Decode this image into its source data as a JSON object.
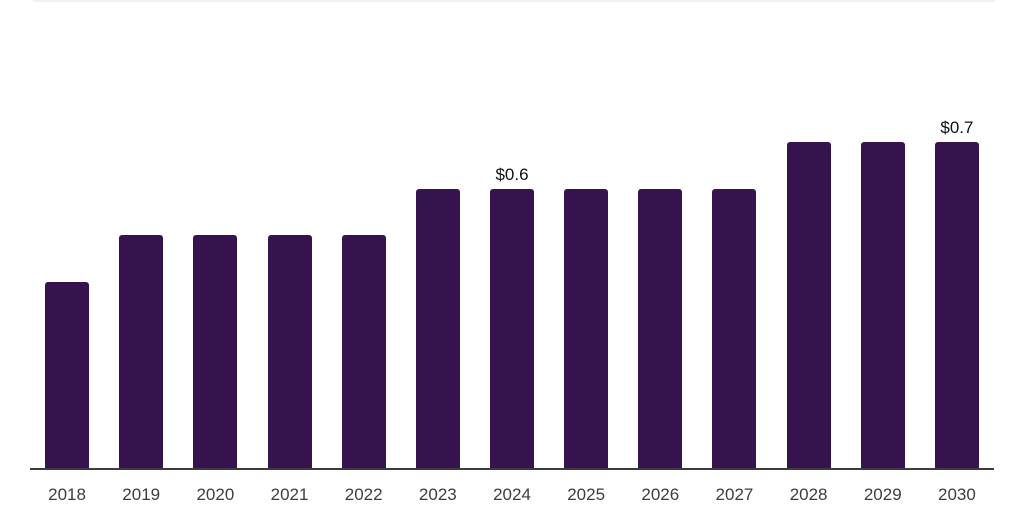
{
  "chart_data": {
    "type": "bar",
    "title": "",
    "xlabel": "",
    "ylabel": "",
    "categories": [
      "2018",
      "2019",
      "2020",
      "2021",
      "2022",
      "2023",
      "2024",
      "2025",
      "2026",
      "2027",
      "2028",
      "2029",
      "2030"
    ],
    "values": [
      0.4,
      0.5,
      0.5,
      0.5,
      0.5,
      0.6,
      0.6,
      0.6,
      0.6,
      0.6,
      0.7,
      0.7,
      0.7
    ],
    "data_labels": [
      "",
      "",
      "",
      "",
      "",
      "",
      "$0.6",
      "",
      "",
      "",
      "",
      "",
      "$0.7"
    ],
    "ylim": [
      0,
      1.0
    ],
    "grid": false,
    "legend": false,
    "colors": {
      "bar": "#36124F",
      "axis_line": "#3B3B3B",
      "tick_label": "#3D3D3D",
      "data_label": "#101010",
      "plot_top_border": "#F1F1F2",
      "background": "#FFFFFF"
    }
  }
}
